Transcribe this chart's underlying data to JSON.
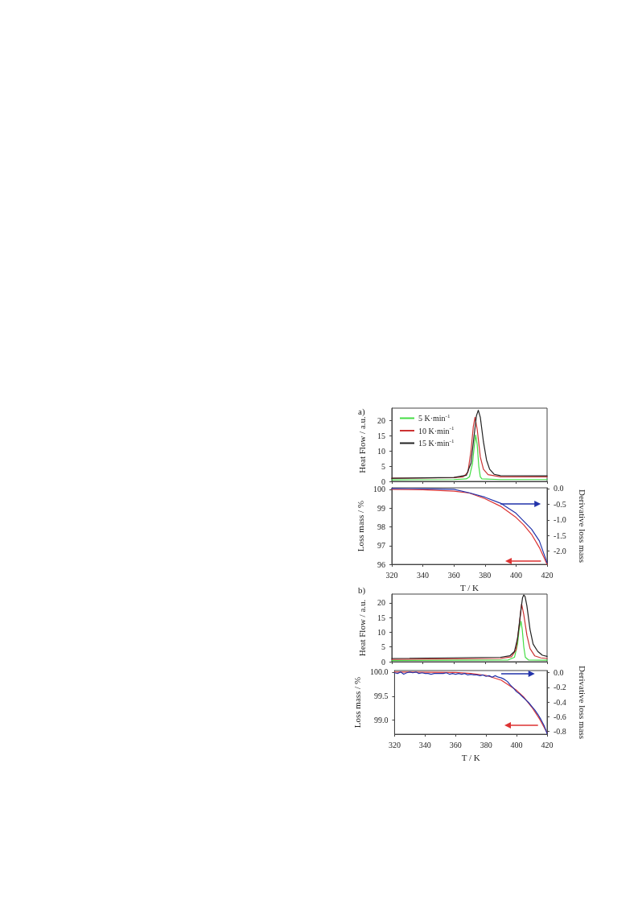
{
  "chart_data": [
    {
      "type": "line",
      "title": "a)",
      "ylabel": "Heat Flow / a.u.",
      "xlim": [
        320,
        420
      ],
      "xticks": [
        320,
        340,
        360,
        380,
        400,
        420
      ],
      "ylim": [
        0,
        24
      ],
      "yticks": [
        0,
        5,
        10,
        15,
        20
      ],
      "tick_labels": "y",
      "legend": "top left",
      "series": [
        {
          "name": "5 K·min$^{-1}$",
          "color": "#44dd44",
          "x": [
            320,
            360,
            368,
            370,
            372,
            373,
            374,
            375,
            376,
            377,
            378,
            390,
            420
          ],
          "values": [
            0.5,
            0.6,
            0.8,
            1.5,
            6,
            11,
            15.2,
            12,
            5,
            1.5,
            0.8,
            0.6,
            0.6
          ]
        },
        {
          "name": "10 K·min$^{-1}$",
          "color": "#cc3333",
          "x": [
            320,
            360,
            366,
            369,
            371,
            372.5,
            373.6,
            375,
            377,
            379,
            382,
            390,
            420
          ],
          "values": [
            1.0,
            1.2,
            1.5,
            3,
            10,
            18,
            21,
            17,
            8,
            4,
            2.2,
            1.5,
            1.5
          ]
        },
        {
          "name": "15 K·min$^{-1}$",
          "color": "#222222",
          "x": [
            320,
            360,
            368,
            371,
            373,
            374.5,
            375.7,
            377,
            379,
            381,
            383,
            386,
            390,
            420
          ],
          "values": [
            1.0,
            1.3,
            2,
            6,
            15,
            21.5,
            23.3,
            21,
            13,
            7,
            4,
            2.3,
            1.9,
            1.8
          ]
        }
      ]
    },
    {
      "type": "line",
      "xlabel": "T / K",
      "ylabel": "Loss mass / %",
      "y2label": "Derivative loss mass",
      "xlim": [
        320,
        420
      ],
      "xticks": [
        320,
        340,
        360,
        380,
        400,
        420
      ],
      "ylim": [
        96,
        100.08
      ],
      "yticks": [
        96,
        97,
        98,
        99,
        100
      ],
      "y2lim": [
        -2.42,
        0.02
      ],
      "y2ticks": [
        {
          "value": 0,
          "label": "0.0"
        },
        -0.5,
        {
          "value": -1,
          "label": "-1.0"
        },
        -1.5,
        {
          "value": -2,
          "label": "-2.0"
        }
      ],
      "series": [
        {
          "color": "#dd3333",
          "x": [
            320,
            340,
            360,
            370,
            380,
            390,
            400,
            405,
            410,
            415,
            420
          ],
          "values": [
            100,
            99.98,
            99.9,
            99.8,
            99.5,
            99.1,
            98.5,
            98.1,
            97.6,
            96.9,
            96.0
          ]
        },
        {
          "color": "#2233aa",
          "axis": "y2",
          "x": [
            320,
            340,
            360,
            370,
            380,
            390,
            400,
            410,
            415,
            420
          ],
          "values": [
            0,
            -0.01,
            -0.03,
            -0.14,
            -0.28,
            -0.47,
            -0.79,
            -1.3,
            -1.67,
            -2.37
          ]
        }
      ]
    },
    {
      "type": "line",
      "title": "b)",
      "ylabel": "Heat Flow / a.u.",
      "xlim": [
        320,
        420
      ],
      "xticks": [
        320,
        340,
        360,
        380,
        400,
        420
      ],
      "ylim": [
        0,
        23
      ],
      "yticks": [
        0,
        5,
        10,
        15,
        20
      ],
      "tick_labels": "y",
      "series": [
        {
          "color": "#44dd44",
          "x": [
            320,
            395,
            399,
            401,
            402,
            403.2,
            404,
            405,
            406,
            408,
            420
          ],
          "values": [
            0.4,
            0.6,
            1.5,
            6,
            11,
            13.7,
            11,
            5,
            1.5,
            0.6,
            0.5
          ]
        },
        {
          "color": "#cc3333",
          "x": [
            320,
            390,
            397,
            400,
            402,
            403.6,
            405,
            407,
            409,
            412,
            416,
            420
          ],
          "values": [
            0.8,
            1.1,
            1.7,
            4,
            12,
            19.6,
            16,
            9,
            4.5,
            2,
            1.3,
            1.1
          ]
        },
        {
          "color": "#222222",
          "x": [
            320,
            390,
            396,
            399,
            401,
            403,
            404.2,
            405,
            405.8,
            407,
            409,
            411,
            414,
            417,
            420
          ],
          "values": [
            1.1,
            1.5,
            2,
            3.5,
            8,
            17,
            21.8,
            22.7,
            22.2,
            19,
            11,
            6,
            3.5,
            2.2,
            1.8
          ]
        }
      ]
    },
    {
      "type": "line",
      "xlabel": "T / K",
      "ylabel": "Loss mass / %",
      "y2label": "Derivative loss mass",
      "xlim": [
        320,
        420
      ],
      "xticks": [
        320,
        340,
        360,
        380,
        400,
        420
      ],
      "ylim": [
        98.71,
        100.03
      ],
      "yticks": [
        {
          "value": 99,
          "label": "99.0"
        },
        99.5,
        {
          "value": 100,
          "label": "100.0"
        }
      ],
      "y2lim": [
        -0.84,
        0.03
      ],
      "y2ticks": [
        {
          "value": 0,
          "label": "0.0"
        },
        -0.2,
        -0.4,
        -0.6,
        -0.8
      ],
      "series": [
        {
          "color": "#dd3333",
          "x": [
            320,
            360,
            370,
            380,
            390,
            400,
            405,
            410,
            415,
            420
          ],
          "values": [
            100.0,
            99.99,
            99.97,
            99.93,
            99.83,
            99.62,
            99.47,
            99.27,
            99.03,
            98.74
          ]
        },
        {
          "color": "#2233aa",
          "axis": "y2",
          "x": [
            320,
            322,
            324,
            326,
            328,
            330,
            332,
            334,
            336,
            338,
            340,
            342,
            344,
            346,
            348,
            350,
            352,
            354,
            356,
            358,
            360,
            362,
            364,
            366,
            368,
            370,
            372,
            374,
            376,
            378,
            380,
            382,
            384,
            386,
            388,
            390,
            392,
            394,
            396,
            398,
            400,
            402,
            404,
            406,
            408,
            410,
            412,
            414,
            416,
            418,
            420
          ],
          "values": [
            0,
            -0.01,
            0.01,
            -0.02,
            0,
            0.01,
            0,
            0.01,
            -0.01,
            0,
            -0.01,
            -0.01,
            -0.02,
            -0.01,
            -0.01,
            -0.01,
            -0.01,
            0,
            -0.02,
            -0.01,
            -0.02,
            -0.01,
            -0.02,
            -0.01,
            -0.03,
            -0.02,
            -0.03,
            -0.03,
            -0.04,
            -0.03,
            -0.05,
            -0.04,
            -0.06,
            -0.04,
            -0.06,
            -0.07,
            -0.09,
            -0.12,
            -0.17,
            -0.21,
            -0.26,
            -0.29,
            -0.33,
            -0.37,
            -0.41,
            -0.46,
            -0.51,
            -0.57,
            -0.64,
            -0.72,
            -0.83
          ]
        }
      ]
    }
  ]
}
